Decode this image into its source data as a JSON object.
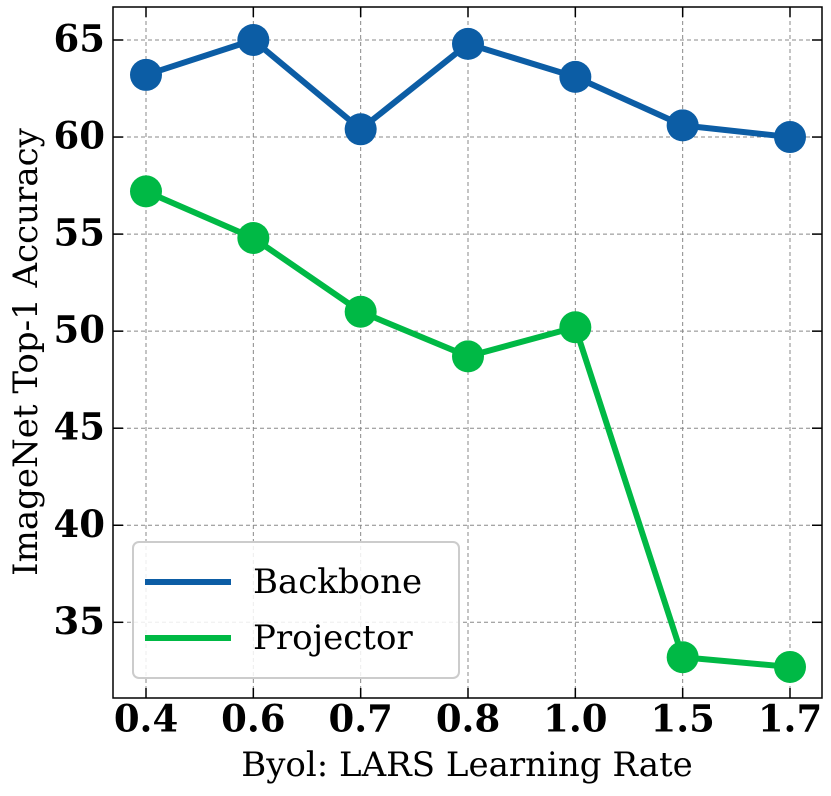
{
  "chart_data": {
    "type": "line",
    "xlabel": "Byol: LARS Learning Rate",
    "ylabel": "ImageNet Top-1 Accuracy",
    "categories": [
      "0.4",
      "0.6",
      "0.7",
      "0.8",
      "1.0",
      "1.5",
      "1.7"
    ],
    "series": [
      {
        "name": "Backbone",
        "color": "#0C5DA5",
        "values": [
          63.2,
          65.0,
          60.4,
          64.8,
          63.1,
          60.6,
          60.0
        ]
      },
      {
        "name": "Projector",
        "color": "#00B945",
        "values": [
          57.2,
          54.8,
          51.0,
          48.7,
          50.2,
          33.2,
          32.7
        ]
      }
    ],
    "ylim": [
      31.1,
      66.7
    ],
    "yticks": [
      35,
      40,
      45,
      50,
      55,
      60,
      65
    ],
    "grid": true,
    "legend": "lower left"
  }
}
